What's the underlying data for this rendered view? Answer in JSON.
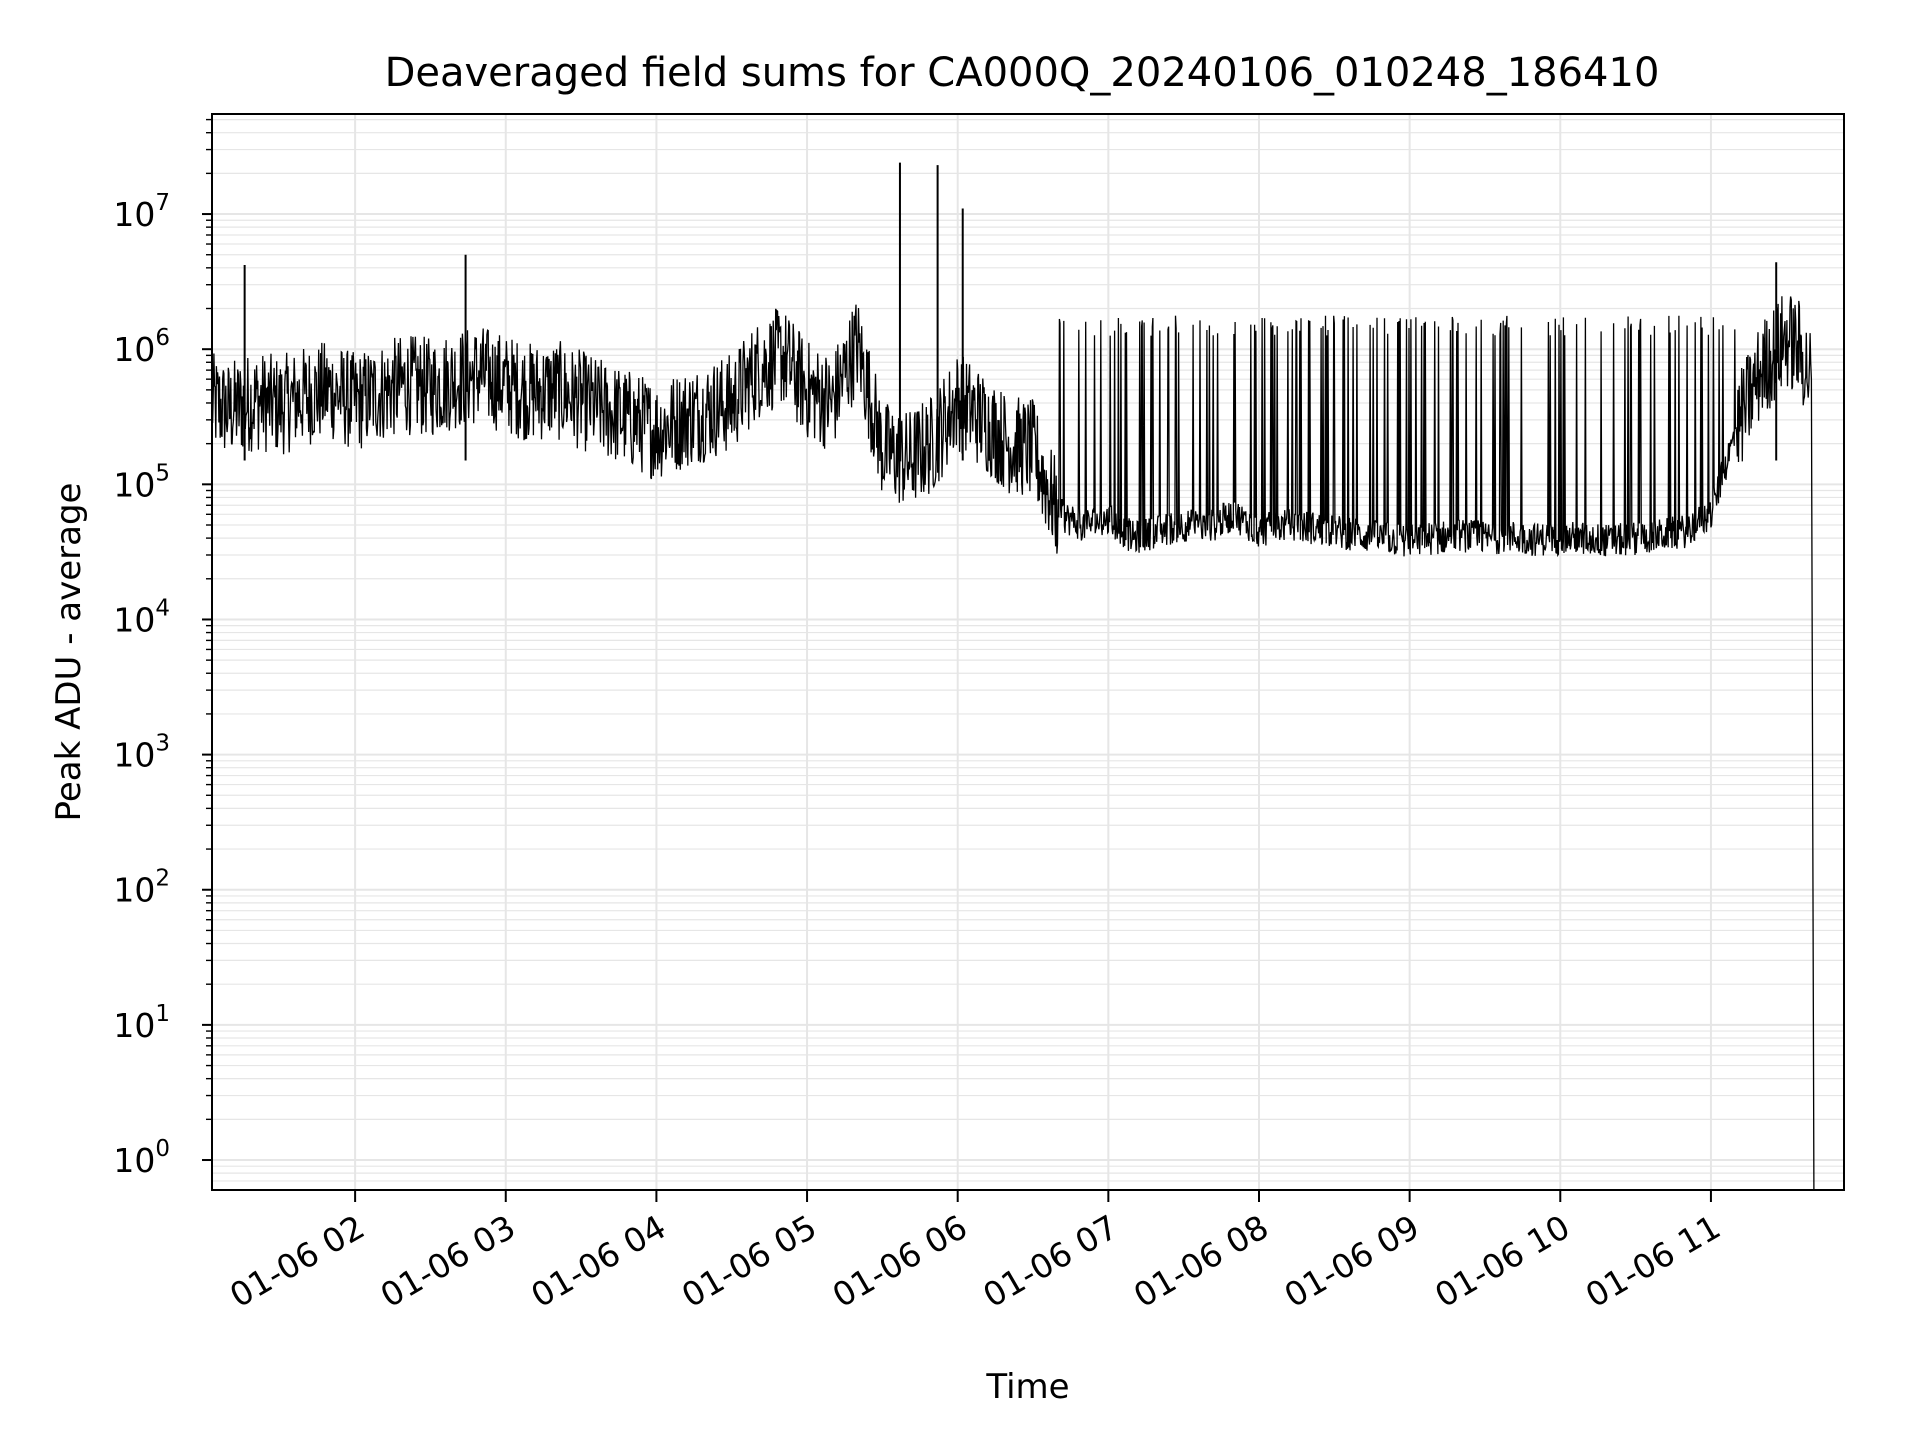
{
  "chart_data": {
    "type": "line",
    "title": "Deaveraged field sums for CA000Q_20240106_010248_186410",
    "xlabel": "Time",
    "ylabel": "Peak ADU - average",
    "yscale": "log",
    "ylim": [
      0.6,
      55000000
    ],
    "xlim": [
      "2024-01-06 01:03",
      "2024-01-06 11:53"
    ],
    "x_ticks": [
      {
        "value": "2024-01-06 02:00",
        "label": "01-06 02"
      },
      {
        "value": "2024-01-06 03:00",
        "label": "01-06 03"
      },
      {
        "value": "2024-01-06 04:00",
        "label": "01-06 04"
      },
      {
        "value": "2024-01-06 05:00",
        "label": "01-06 05"
      },
      {
        "value": "2024-01-06 06:00",
        "label": "01-06 06"
      },
      {
        "value": "2024-01-06 07:00",
        "label": "01-06 07"
      },
      {
        "value": "2024-01-06 08:00",
        "label": "01-06 08"
      },
      {
        "value": "2024-01-06 09:00",
        "label": "01-06 09"
      },
      {
        "value": "2024-01-06 10:00",
        "label": "01-06 10"
      },
      {
        "value": "2024-01-06 11:00",
        "label": "01-06 11"
      }
    ],
    "y_ticks": [
      {
        "value": 1,
        "base": "10",
        "exp": "0"
      },
      {
        "value": 10,
        "base": "10",
        "exp": "1"
      },
      {
        "value": 100,
        "base": "10",
        "exp": "2"
      },
      {
        "value": 1000,
        "base": "10",
        "exp": "3"
      },
      {
        "value": 10000,
        "base": "10",
        "exp": "4"
      },
      {
        "value": 100000,
        "base": "10",
        "exp": "5"
      },
      {
        "value": 1000000,
        "base": "10",
        "exp": "6"
      },
      {
        "value": 10000000,
        "base": "10",
        "exp": "7"
      }
    ],
    "grid": true,
    "line_color": "#000000",
    "grid_color": "#e6e6e6",
    "series": [
      {
        "x": [
          "2024-01-06 01:03",
          "2024-01-06 01:10",
          "2024-01-06 01:20",
          "2024-01-06 01:30",
          "2024-01-06 01:40",
          "2024-01-06 01:50",
          "2024-01-06 02:00",
          "2024-01-06 02:10",
          "2024-01-06 02:20",
          "2024-01-06 02:30",
          "2024-01-06 02:40",
          "2024-01-06 02:50",
          "2024-01-06 03:00",
          "2024-01-06 03:10",
          "2024-01-06 03:20",
          "2024-01-06 03:30",
          "2024-01-06 03:40",
          "2024-01-06 03:50",
          "2024-01-06 04:00",
          "2024-01-06 04:10",
          "2024-01-06 04:20",
          "2024-01-06 04:30",
          "2024-01-06 04:40",
          "2024-01-06 04:50",
          "2024-01-06 05:00",
          "2024-01-06 05:10",
          "2024-01-06 05:20",
          "2024-01-06 05:30",
          "2024-01-06 05:40",
          "2024-01-06 05:50",
          "2024-01-06 06:00",
          "2024-01-06 06:10",
          "2024-01-06 06:20",
          "2024-01-06 06:30",
          "2024-01-06 06:40",
          "2024-01-06 06:50",
          "2024-01-06 07:00",
          "2024-01-06 07:10",
          "2024-01-06 07:20",
          "2024-01-06 07:30",
          "2024-01-06 07:40",
          "2024-01-06 07:50",
          "2024-01-06 08:00",
          "2024-01-06 08:10",
          "2024-01-06 08:20",
          "2024-01-06 08:30",
          "2024-01-06 08:40",
          "2024-01-06 08:50",
          "2024-01-06 09:00",
          "2024-01-06 09:10",
          "2024-01-06 09:20",
          "2024-01-06 09:30",
          "2024-01-06 09:40",
          "2024-01-06 09:50",
          "2024-01-06 10:00",
          "2024-01-06 10:10",
          "2024-01-06 10:20",
          "2024-01-06 10:30",
          "2024-01-06 10:40",
          "2024-01-06 10:50",
          "2024-01-06 11:00",
          "2024-01-06 11:10",
          "2024-01-06 11:20",
          "2024-01-06 11:30",
          "2024-01-06 11:35",
          "2024-01-06 11:40",
          "2024-01-06 11:41"
        ],
        "y": [
          400000,
          350000,
          420000,
          380000,
          450000,
          500000,
          400000,
          480000,
          550000,
          520000,
          600000,
          650000,
          550000,
          480000,
          500000,
          420000,
          350000,
          300000,
          250000,
          300000,
          350000,
          400000,
          700000,
          900000,
          500000,
          400000,
          1100000,
          180000,
          150000,
          200000,
          420000,
          300000,
          200000,
          180000,
          60000,
          50000,
          55000,
          40000,
          45000,
          50000,
          48000,
          60000,
          45000,
          50000,
          48000,
          45000,
          42000,
          40000,
          38000,
          40000,
          42000,
          40000,
          41000,
          39000,
          40000,
          40000,
          38000,
          40000,
          42000,
          45000,
          60000,
          250000,
          700000,
          1200000,
          1000000,
          600000,
          0.6
        ]
      }
    ],
    "spikes": [
      {
        "x": "2024-01-06 05:37",
        "y": 24000000
      },
      {
        "x": "2024-01-06 05:52",
        "y": 23000000
      },
      {
        "x": "2024-01-06 06:02",
        "y": 11000000
      },
      {
        "x": "2024-01-06 02:44",
        "y": 5000000
      },
      {
        "x": "2024-01-06 11:26",
        "y": 4400000
      },
      {
        "x": "2024-01-06 01:16",
        "y": 4200000
      }
    ]
  }
}
